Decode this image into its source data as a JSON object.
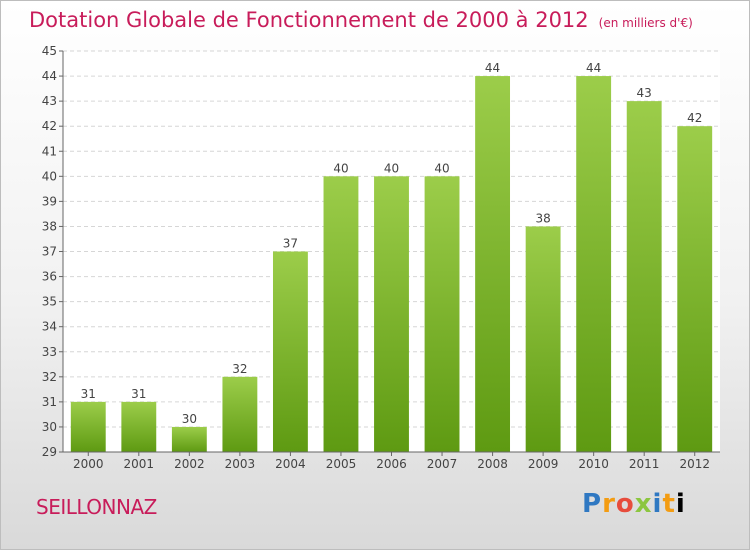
{
  "header": {
    "title": "Dotation Globale de Fonctionnement de 2000 à 2012",
    "subtitle": "(en milliers d'€)"
  },
  "commune": "SEILLONNAZ",
  "logo": {
    "letters": [
      "P",
      "r",
      "o",
      "x",
      "i",
      "t",
      "i"
    ]
  },
  "chart_data": {
    "type": "bar",
    "categories": [
      "2000",
      "2001",
      "2002",
      "2003",
      "2004",
      "2005",
      "2006",
      "2007",
      "2008",
      "2009",
      "2010",
      "2011",
      "2012"
    ],
    "values": [
      31,
      31,
      30,
      32,
      37,
      40,
      40,
      40,
      44,
      38,
      44,
      43,
      42
    ],
    "data_labels": [
      "31",
      "31",
      "30",
      "32",
      "37",
      "40",
      "40",
      "40",
      "44",
      "38",
      "44",
      "43",
      "42"
    ],
    "ylim": [
      29,
      45
    ],
    "yticks": [
      29,
      30,
      31,
      32,
      33,
      34,
      35,
      36,
      37,
      38,
      39,
      40,
      41,
      42,
      43,
      44,
      45
    ],
    "grid": true,
    "bar_color_top": "#9ccd4a",
    "bar_color_bottom": "#5e9a12",
    "title_color": "#c81c5a"
  }
}
